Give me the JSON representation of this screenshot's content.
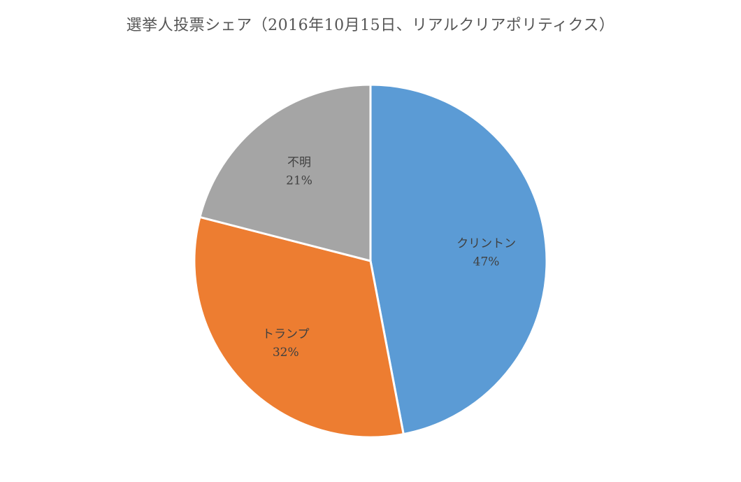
{
  "chart_data": {
    "type": "pie",
    "title": "選挙人投票シェア（2016年10月15日、リアルクリアポリティクス）",
    "start_angle_deg": 0,
    "direction": "clockwise",
    "slices": [
      {
        "label": "クリントン",
        "value": 47,
        "value_label": "47%",
        "color": "#5b9bd5"
      },
      {
        "label": "トランプ",
        "value": 32,
        "value_label": "32%",
        "color": "#ed7d31"
      },
      {
        "label": "不明",
        "value": 21,
        "value_label": "21%",
        "color": "#a5a5a5"
      }
    ],
    "legend": "none",
    "data_labels": "inside"
  }
}
